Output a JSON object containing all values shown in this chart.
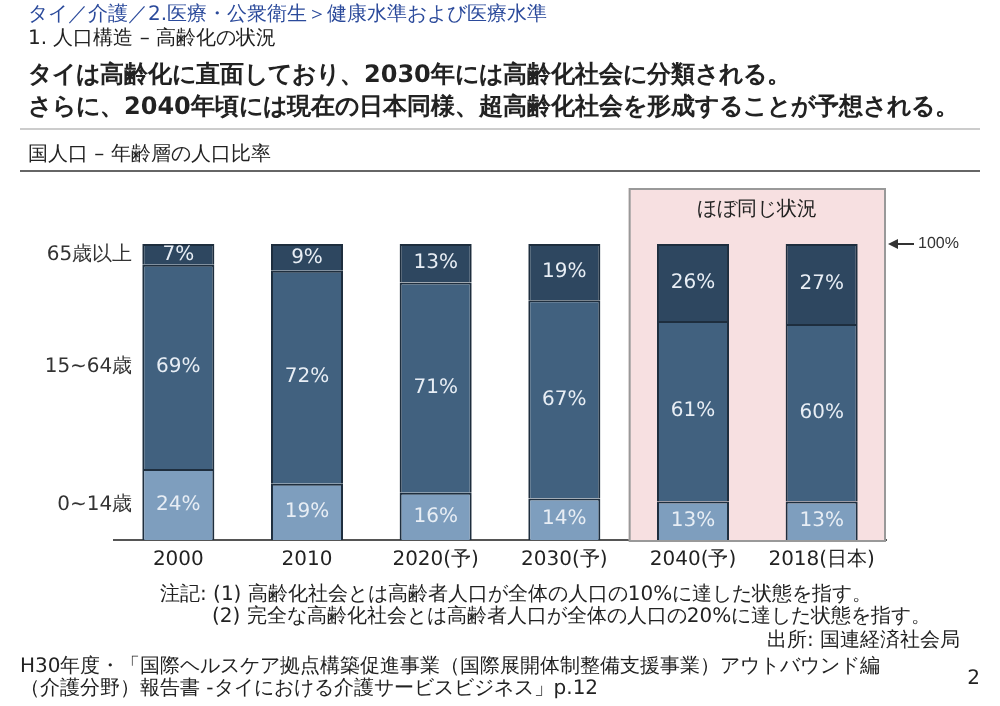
{
  "chart_data": {
    "type": "bar",
    "stacked": true,
    "title": "タイは高齢化に直面しており、2030年には高齢化社会に分類される。さらに、2040年頃には現在の日本同様、超高齢化社会を形成することが予想される。",
    "subtitle": "国人口 – 年齢層の人口比率",
    "categories": [
      "2000",
      "2010",
      "2020(予)",
      "2030(予)",
      "2040(予)",
      "2018(日本)"
    ],
    "series": [
      {
        "name": "0~14歳",
        "color": "#7e9ebe",
        "values": [
          24,
          19,
          16,
          14,
          13,
          13
        ],
        "value_labels": [
          "24%",
          "19%",
          "16%",
          "14%",
          "13%",
          "13%"
        ]
      },
      {
        "name": "15~64歳",
        "color": "#41617f",
        "values": [
          69,
          72,
          71,
          67,
          61,
          60
        ],
        "value_labels": [
          "69%",
          "72%",
          "71%",
          "67%",
          "61%",
          "60%"
        ]
      },
      {
        "name": "65歳以上",
        "color": "#2e4760",
        "values": [
          7,
          9,
          13,
          19,
          26,
          27
        ],
        "value_labels": [
          "7%",
          "9%",
          "13%",
          "19%",
          "26%",
          "27%"
        ]
      }
    ],
    "ylim": [
      0,
      100
    ],
    "tick_labels": "x",
    "grid": false,
    "legend": false,
    "ref_lines": [
      {
        "axis": "y",
        "value": 100,
        "label": "100%"
      }
    ],
    "bands": [
      {
        "axis": "x",
        "from": "2040(予)",
        "to": "2018(日本)",
        "label": "ほぼ同じ状況",
        "color": "#f7e0e1"
      }
    ],
    "annotations": [
      "タイ／介護／2.医療・公衆衛生＞健康水準および医療水準",
      "1. 人口構造 – 高齢化の状況",
      "注記: (1) 高齢化社会とは高齢者人口が全体の人口の10%に達した状態を指す。",
      "(2) 完全な高齢化社会とは高齢者人口が全体の人口の20%に達した状態を指す。",
      "出所: 国連経済社会局",
      "H30年度・「国際ヘルスケア拠点構築促進事業（国際展開体制整備支援事業）アウトバウンド編（介護分野）報告書 -タイにおける介護サービスビジネス」p.12",
      "2"
    ]
  }
}
